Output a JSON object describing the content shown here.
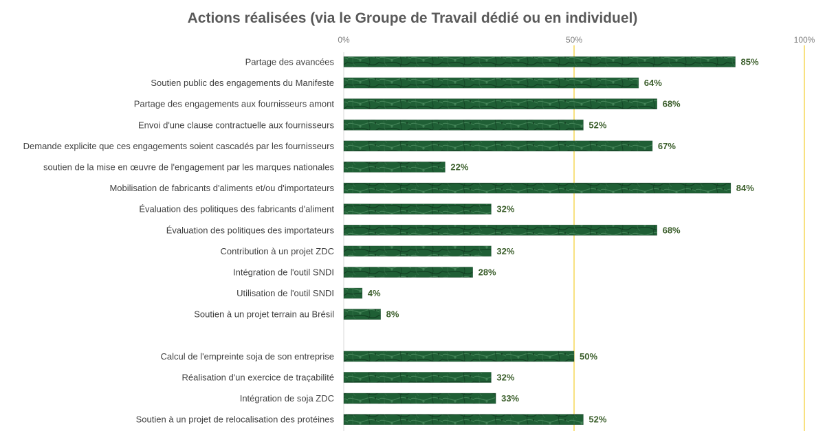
{
  "chart_data": {
    "type": "bar",
    "orientation": "horizontal",
    "title": "Actions réalisées (via le Groupe de Travail dédié ou en individuel)",
    "xlabel": "",
    "ylabel": "",
    "xlim": [
      0,
      100
    ],
    "x_tick_labels": [
      "0%",
      "50%",
      "100%"
    ],
    "gridlines_at": [
      50,
      100
    ],
    "grid": true,
    "legend": "none",
    "colors": {
      "bar": "#1e5e34",
      "bar_dark": "#123f22",
      "bar_light": "#4a8a5e",
      "gridline": "#f2c300",
      "axis": "#d9d9d9",
      "value_label": "#3b5e2b",
      "category_label": "#404040",
      "title": "#595959",
      "tick_label": "#7f7f7f"
    },
    "groups": [
      {
        "categories": [
          "Partage des avancées",
          "Soutien public des engagements du Manifeste",
          "Partage des engagements aux fournisseurs amont",
          "Envoi d'une clause contractuelle aux fournisseurs",
          "Demande explicite que ces engagements soient cascadés par les fournisseurs",
          "soutien de la mise en œuvre de l'engagement par les marques nationales",
          "Mobilisation de fabricants d'aliments et/ou d'importateurs",
          "Évaluation des politiques des fabricants d'aliment",
          "Évaluation des politiques des importateurs",
          "Contribution à un projet ZDC",
          "Intégration de l'outil SNDI",
          "Utilisation de l'outil SNDI",
          "Soutien à un projet terrain au Brésil"
        ],
        "values": [
          85,
          64,
          68,
          52,
          67,
          22,
          84,
          32,
          68,
          32,
          28,
          4,
          8
        ],
        "value_labels": [
          "85%",
          "64%",
          "68%",
          "52%",
          "67%",
          "22%",
          "84%",
          "32%",
          "68%",
          "32%",
          "28%",
          "4%",
          "8%"
        ]
      },
      {
        "categories": [
          "Calcul de l'empreinte soja de son entreprise",
          "Réalisation d'un exercice de traçabilité",
          "Intégration de soja ZDC",
          "Soutien à un projet de relocalisation des protéines"
        ],
        "values": [
          50,
          32,
          33,
          52
        ],
        "value_labels": [
          "50%",
          "32%",
          "33%",
          "52%"
        ]
      }
    ]
  }
}
